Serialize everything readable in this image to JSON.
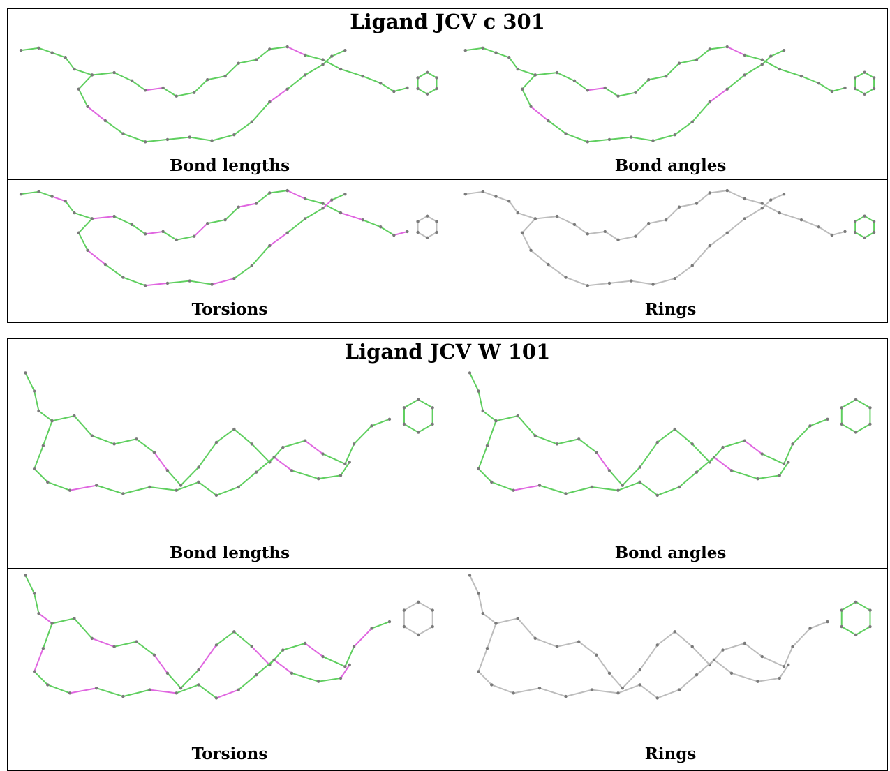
{
  "colors": {
    "match": "#5fcf5f",
    "outlier": "#e066e0",
    "neutral": "#bdbdbd",
    "atom": "#7a7a7a"
  },
  "blocks": [
    {
      "title": "Ligand JCV c 301",
      "panels": [
        {
          "caption": "Bond lengths",
          "mode": "mostly-green"
        },
        {
          "caption": "Bond angles",
          "mode": "mostly-green"
        },
        {
          "caption": "Torsions",
          "mode": "green-purple"
        },
        {
          "caption": "Rings",
          "mode": "grey-ring-green"
        }
      ]
    },
    {
      "title": "Ligand JCV W 101",
      "panels": [
        {
          "caption": "Bond lengths",
          "mode": "mostly-green"
        },
        {
          "caption": "Bond angles",
          "mode": "mostly-green"
        },
        {
          "caption": "Torsions",
          "mode": "green-purple"
        },
        {
          "caption": "Rings",
          "mode": "grey-ring-green"
        }
      ]
    }
  ]
}
